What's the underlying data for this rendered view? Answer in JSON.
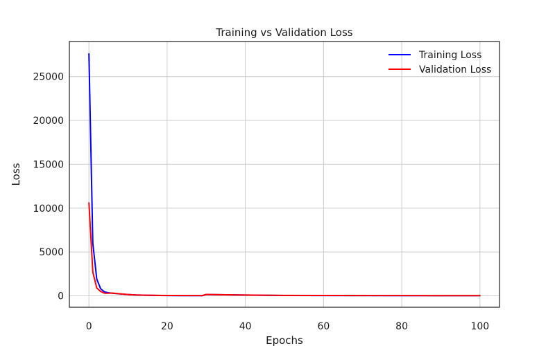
{
  "chart_data": {
    "type": "line",
    "title": "Training vs Validation Loss",
    "xlabel": "Epochs",
    "ylabel": "Loss",
    "xlim": [
      -5,
      105
    ],
    "ylim": [
      -1300,
      29000
    ],
    "xticks": [
      0,
      20,
      40,
      60,
      80,
      100
    ],
    "yticks": [
      0,
      5000,
      10000,
      15000,
      20000,
      25000
    ],
    "grid": true,
    "legend": "top-right",
    "series": [
      {
        "name": "Training Loss",
        "color": "#0000ff",
        "x": [
          0,
          1,
          2,
          3,
          4,
          5,
          6,
          7,
          8,
          10,
          12,
          15,
          18,
          20,
          25,
          29,
          30,
          35,
          40,
          45,
          50,
          60,
          70,
          80,
          90,
          100
        ],
        "y": [
          27600,
          6000,
          1900,
          800,
          450,
          350,
          300,
          260,
          220,
          150,
          100,
          60,
          40,
          30,
          20,
          20,
          150,
          120,
          90,
          60,
          45,
          35,
          30,
          25,
          22,
          20
        ]
      },
      {
        "name": "Validation Loss",
        "color": "#ff0000",
        "x": [
          0,
          1,
          2,
          3,
          4,
          5,
          6,
          7,
          8,
          10,
          12,
          15,
          18,
          20,
          25,
          29,
          30,
          35,
          40,
          45,
          50,
          60,
          70,
          80,
          90,
          100
        ],
        "y": [
          10600,
          2700,
          900,
          500,
          300,
          300,
          320,
          280,
          230,
          150,
          100,
          70,
          50,
          40,
          30,
          30,
          160,
          120,
          90,
          70,
          50,
          40,
          35,
          30,
          28,
          25
        ]
      }
    ]
  }
}
